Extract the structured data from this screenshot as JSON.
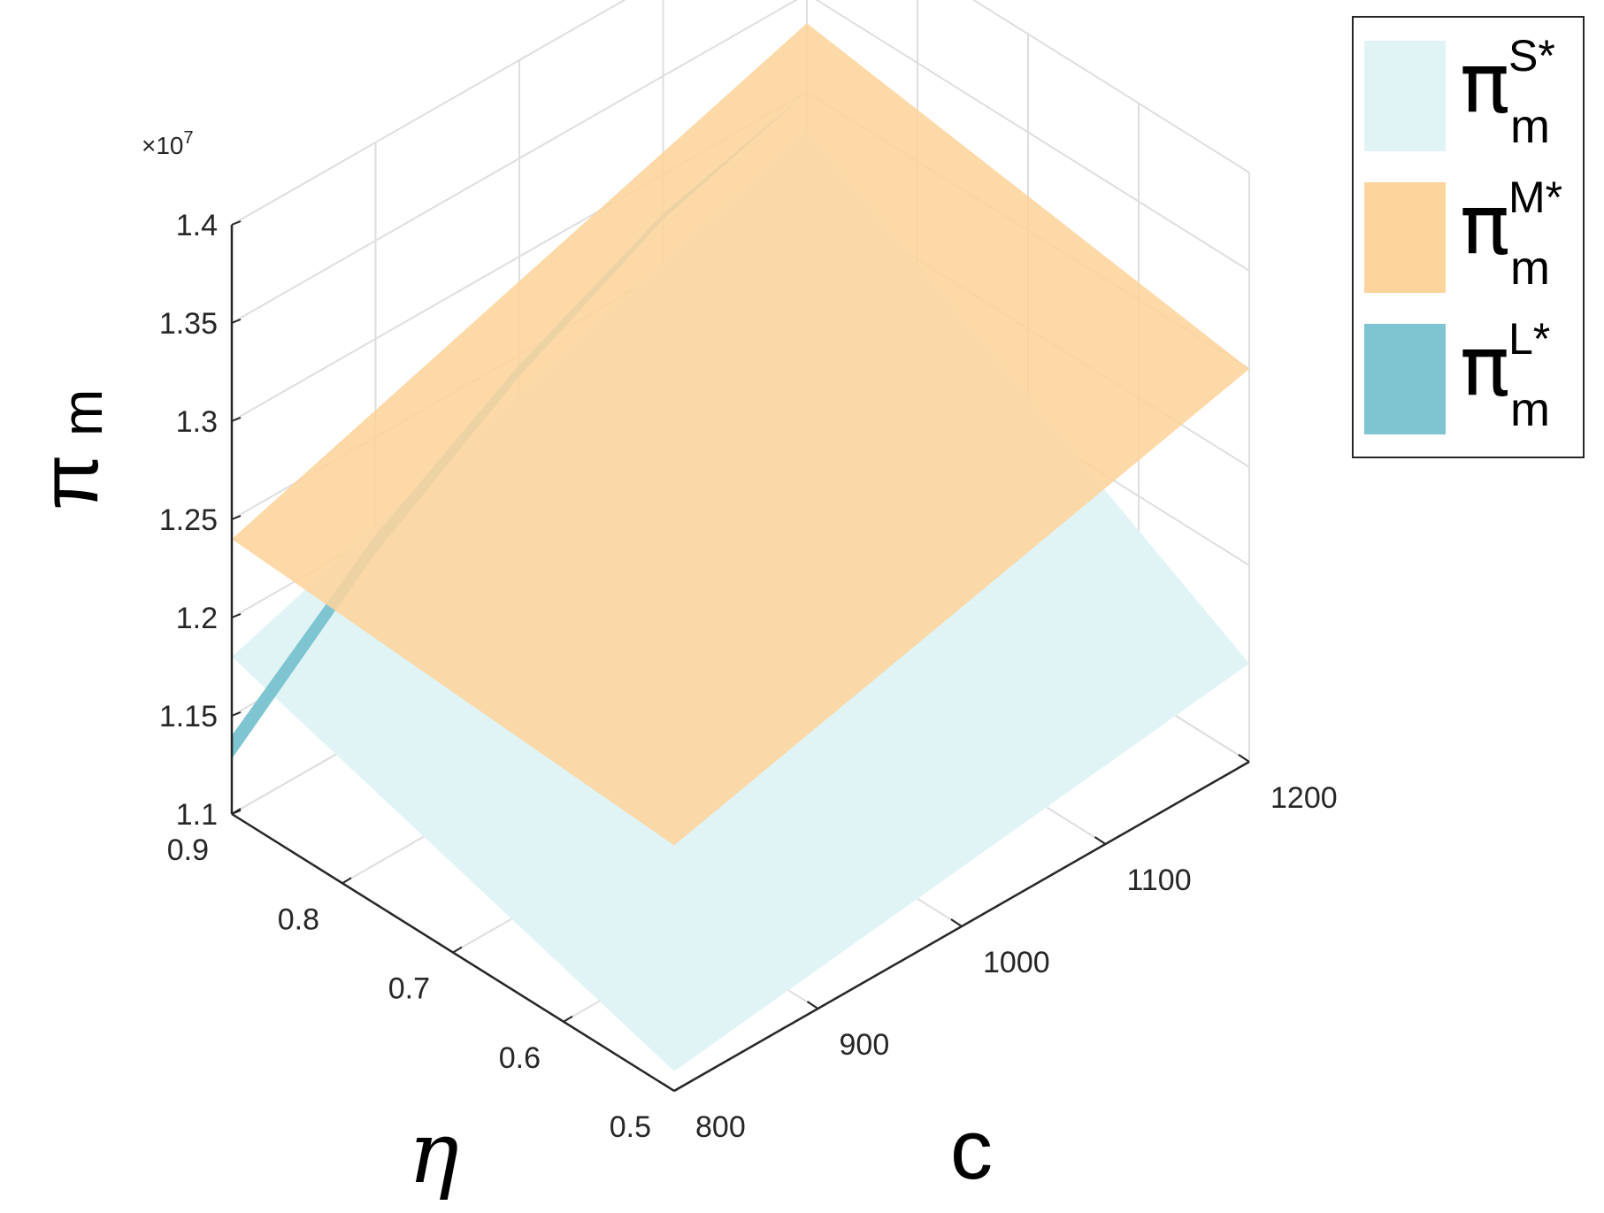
{
  "chart_data": {
    "type": "surface3d",
    "title": "",
    "xlabel": "c",
    "ylabel": "η",
    "zlabel": "π_m",
    "xlim": [
      800,
      1200
    ],
    "ylim": [
      0.5,
      0.9
    ],
    "zlim": [
      11000000,
      14000000
    ],
    "x_ticks": [
      "800",
      "900",
      "1000",
      "1100",
      "1200"
    ],
    "y_ticks": [
      "0.5",
      "0.6",
      "0.7",
      "0.8",
      "0.9"
    ],
    "z_ticks": [
      "1.1",
      "1.15",
      "1.2",
      "1.25",
      "1.3",
      "1.35",
      "1.4"
    ],
    "z_exponent_label": "×10",
    "z_exponent_power": "7",
    "grid": true,
    "legend_position": "top-right",
    "series": [
      {
        "name": "π_m^{S*}",
        "color": "#e0f4f6",
        "corners": {
          "c800_eta0.9": 11800000,
          "c1200_eta0.9": 12800000,
          "c800_eta0.5": 11100000,
          "c1200_eta0.5": 11500000
        }
      },
      {
        "name": "π_m^{M*}",
        "color": "#fdd49c",
        "corners": {
          "c800_eta0.9": 12400000,
          "c1200_eta0.9": 13350000,
          "c800_eta0.5": 12250000,
          "c1200_eta0.5": 13000000
        }
      },
      {
        "name": "π_m^{L*}",
        "color": "#7ec4d1",
        "edge_eta0.9": [
          {
            "c": 800,
            "z": 11400000
          },
          {
            "c": 900,
            "z": 12000000
          },
          {
            "c": 1000,
            "z": 12450000
          },
          {
            "c": 1100,
            "z": 12800000
          },
          {
            "c": 1200,
            "z": 13000000
          }
        ]
      }
    ]
  },
  "legend": {
    "items": [
      {
        "base": "π",
        "sup": "S*",
        "sub": "m",
        "color": "#e0f4f6"
      },
      {
        "base": "π",
        "sup": "M*",
        "sub": "m",
        "color": "#fdd49c"
      },
      {
        "base": "π",
        "sup": "L*",
        "sub": "m",
        "color": "#7ec4d1"
      }
    ]
  },
  "axis_labels": {
    "x": "c",
    "y": "η",
    "z_base": "π",
    "z_sub": "m"
  }
}
